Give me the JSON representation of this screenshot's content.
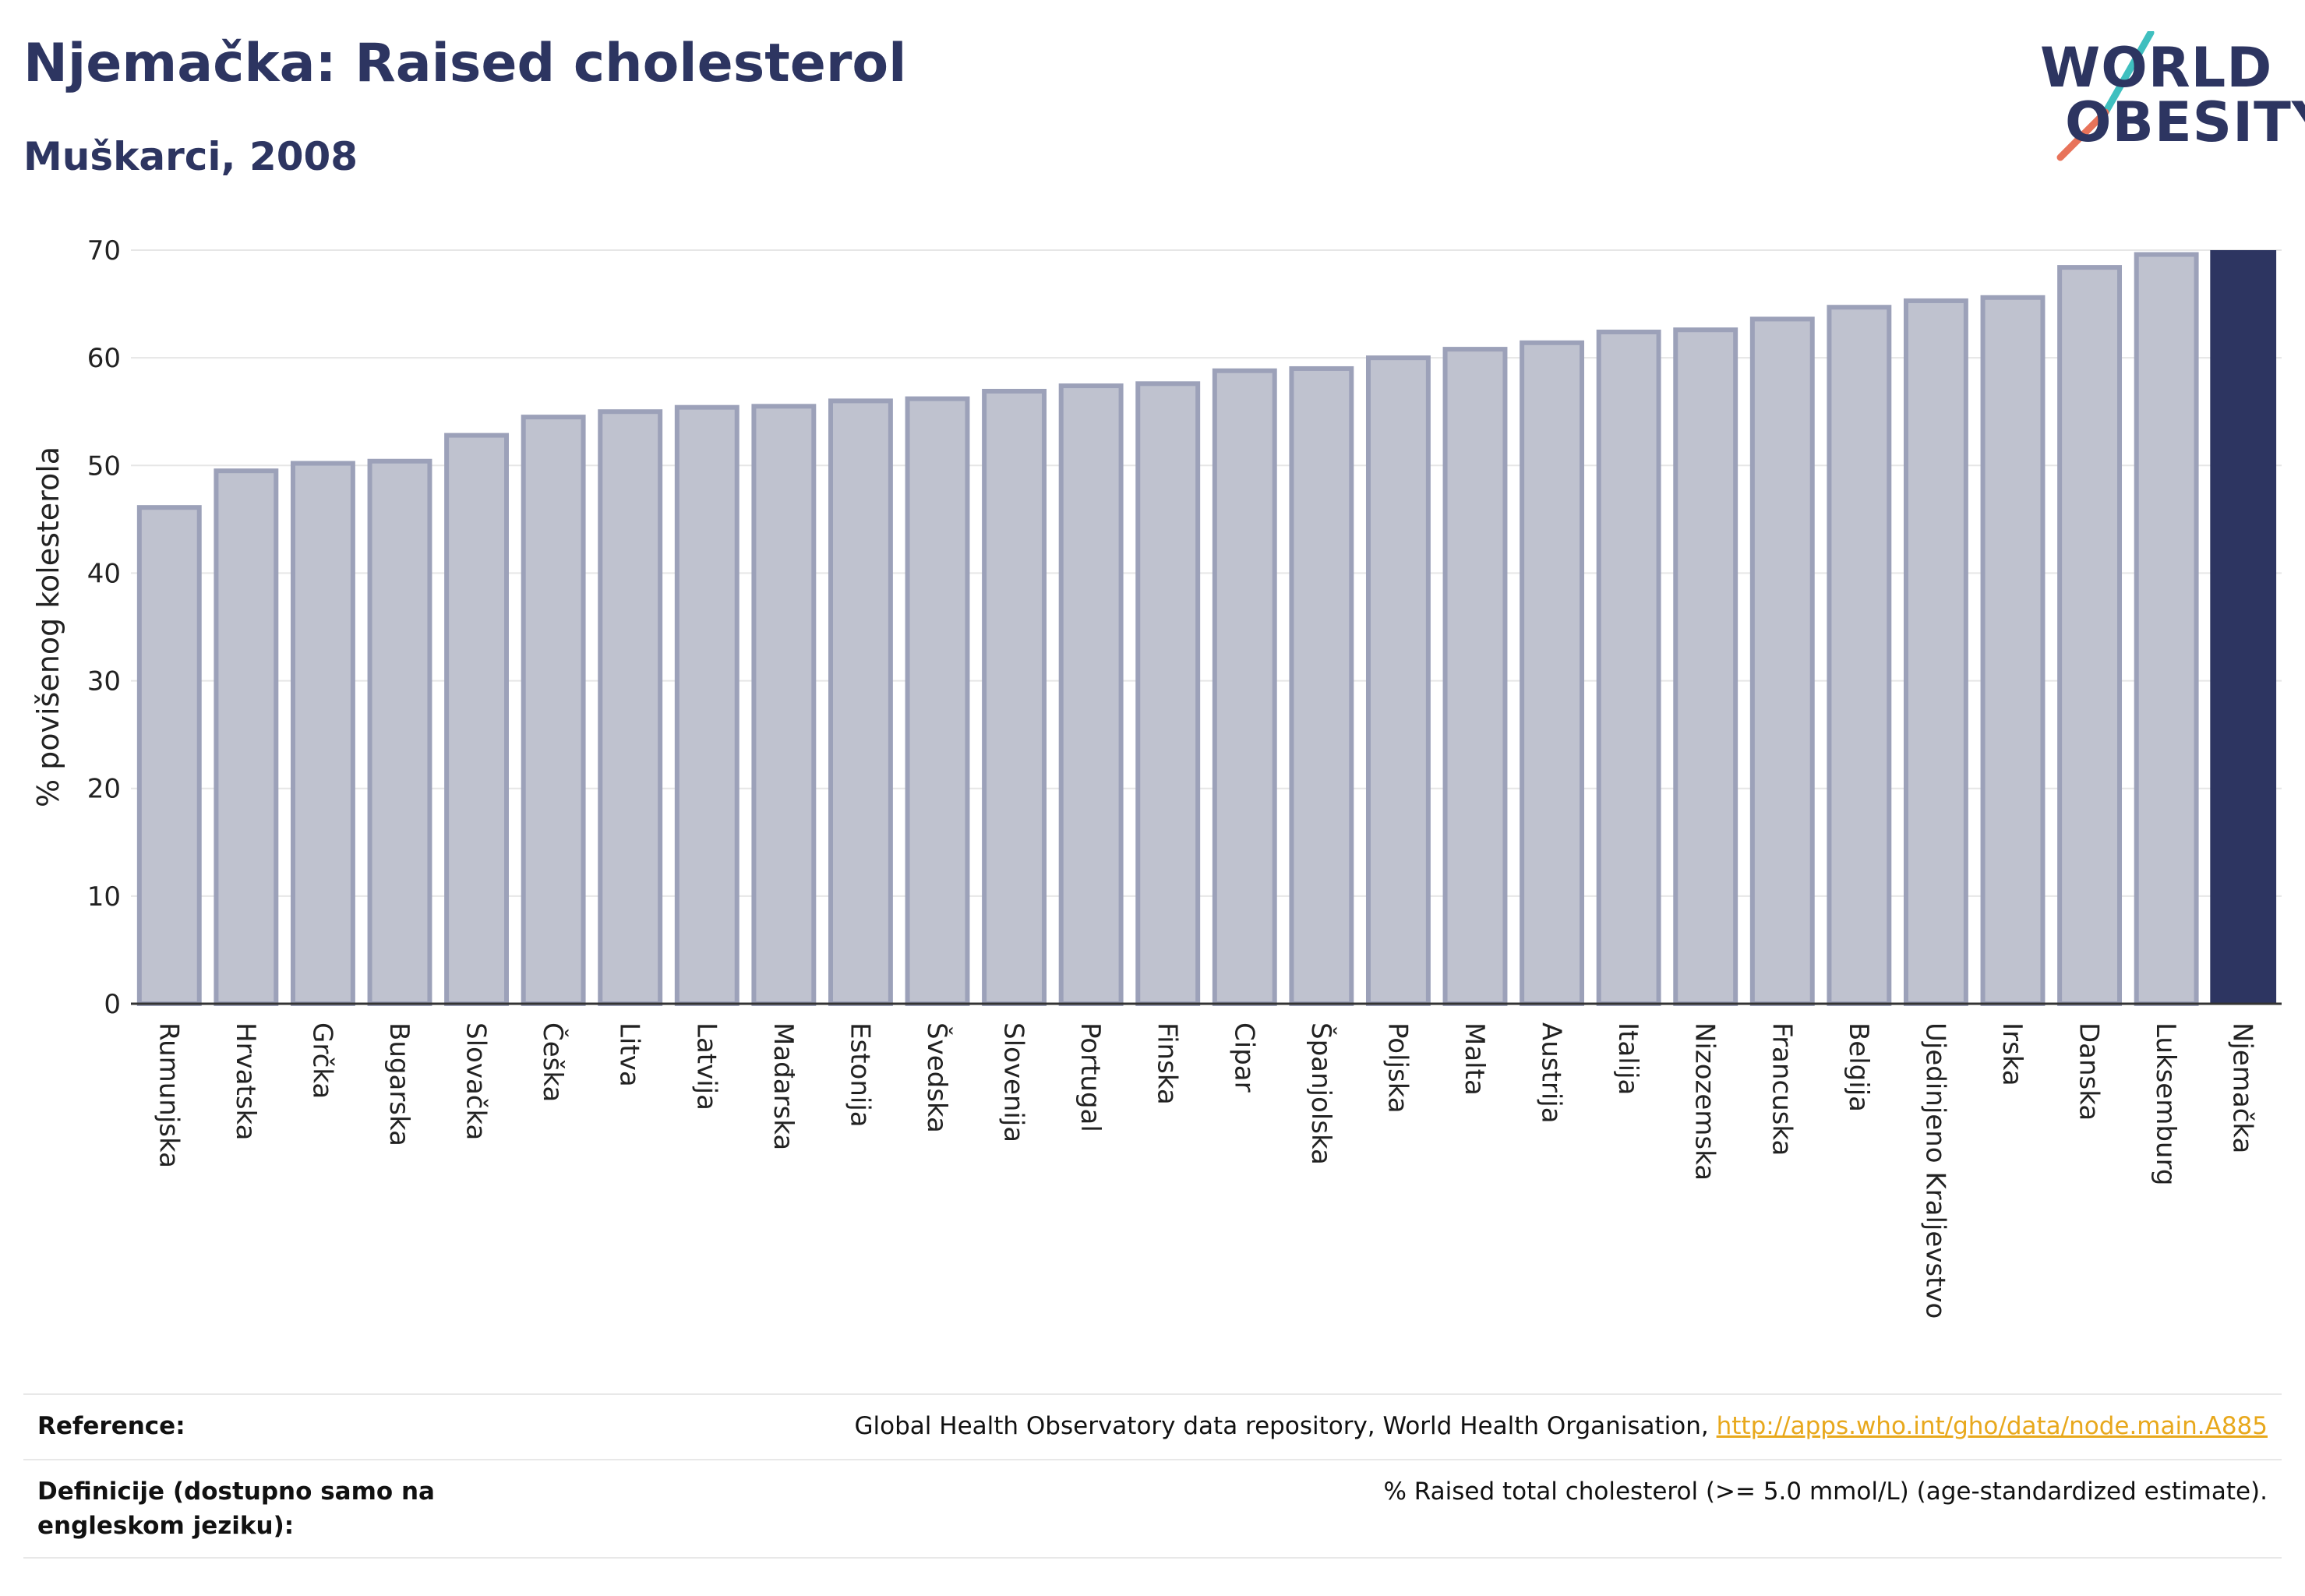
{
  "header": {
    "title": "Njemačka: Raised cholesterol",
    "subtitle": "Muškarci, 2008"
  },
  "logo": {
    "line1": "WORLD",
    "line2": "OBESITY",
    "colors": {
      "text": "#2d3561",
      "slash_teal": "#3fbfbf",
      "slash_coral": "#e8735a"
    }
  },
  "colors": {
    "bar_fill": "#bfc2cf",
    "bar_stroke": "#9ca1b9",
    "highlight": "#2d3561",
    "grid": "#e6e6e6"
  },
  "chart_data": {
    "type": "bar",
    "title": "Njemačka: Raised cholesterol",
    "subtitle": "Muškarci, 2008",
    "ylabel": "% povišenog kolesterola",
    "xlabel": "",
    "ylim": [
      0,
      70
    ],
    "yticks": [
      0,
      10,
      20,
      30,
      40,
      50,
      60,
      70
    ],
    "grid": true,
    "highlight_category": "Njemačka",
    "categories": [
      "Rumunjska",
      "Hrvatska",
      "Grčka",
      "Bugarska",
      "Slovačka",
      "Češka",
      "Litva",
      "Latvija",
      "Mađarska",
      "Estonija",
      "Švedska",
      "Slovenija",
      "Portugal",
      "Finska",
      "Cipar",
      "Španjolska",
      "Poljska",
      "Malta",
      "Austrija",
      "Italija",
      "Nizozemska",
      "Francuska",
      "Belgija",
      "Ujedinjeno Kraljevstvo",
      "Irska",
      "Danska",
      "Luksemburg",
      "Njemačka"
    ],
    "values": [
      46.1,
      49.5,
      50.2,
      50.4,
      52.8,
      54.5,
      55.0,
      55.4,
      55.5,
      56.0,
      56.2,
      56.9,
      57.4,
      57.6,
      58.8,
      59.0,
      60.0,
      60.8,
      61.4,
      62.4,
      62.6,
      63.6,
      64.7,
      65.3,
      65.6,
      68.4,
      69.6,
      70.1
    ]
  },
  "reference": {
    "label": "Reference:",
    "text": "Global Health Observatory data repository, World Health Organisation, ",
    "link": "http://apps.who.int/gho/data/node.main.A885"
  },
  "definition": {
    "label": "Definicije (dostupno samo na engleskom jeziku):",
    "text": "% Raised total cholesterol (>= 5.0 mmol/L) (age-standardized estimate)."
  }
}
